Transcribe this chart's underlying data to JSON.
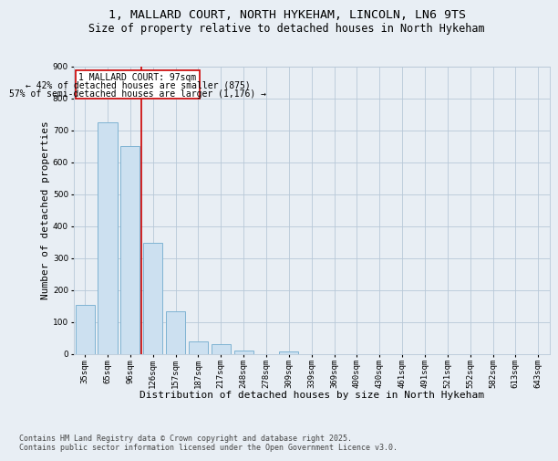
{
  "title_line1": "1, MALLARD COURT, NORTH HYKEHAM, LINCOLN, LN6 9TS",
  "title_line2": "Size of property relative to detached houses in North Hykeham",
  "categories": [
    "35sqm",
    "65sqm",
    "96sqm",
    "126sqm",
    "157sqm",
    "187sqm",
    "217sqm",
    "248sqm",
    "278sqm",
    "309sqm",
    "339sqm",
    "369sqm",
    "400sqm",
    "430sqm",
    "461sqm",
    "491sqm",
    "521sqm",
    "552sqm",
    "582sqm",
    "613sqm",
    "643sqm"
  ],
  "values": [
    152,
    725,
    651,
    346,
    132,
    40,
    30,
    11,
    0,
    8,
    0,
    0,
    0,
    0,
    0,
    0,
    0,
    0,
    0,
    0,
    0
  ],
  "bar_color": "#cce0f0",
  "bar_edge_color": "#7fb3d3",
  "vline_x": 2.5,
  "vline_color": "#cc0000",
  "annotation_title": "1 MALLARD COURT: 97sqm",
  "annotation_line2": "← 42% of detached houses are smaller (875)",
  "annotation_line3": "57% of semi-detached houses are larger (1,176) →",
  "annotation_box_color": "#cc0000",
  "xlabel": "Distribution of detached houses by size in North Hykeham",
  "ylabel": "Number of detached properties",
  "ylim": [
    0,
    900
  ],
  "yticks": [
    0,
    100,
    200,
    300,
    400,
    500,
    600,
    700,
    800,
    900
  ],
  "footer_line1": "Contains HM Land Registry data © Crown copyright and database right 2025.",
  "footer_line2": "Contains public sector information licensed under the Open Government Licence v3.0.",
  "bg_color": "#e8eef4",
  "plot_bg_color": "#e8eef4",
  "grid_color": "#b8c8d8",
  "title_fontsize": 9.5,
  "subtitle_fontsize": 8.5,
  "tick_fontsize": 6.5,
  "label_fontsize": 8,
  "footer_fontsize": 6,
  "ann_fontsize": 7
}
